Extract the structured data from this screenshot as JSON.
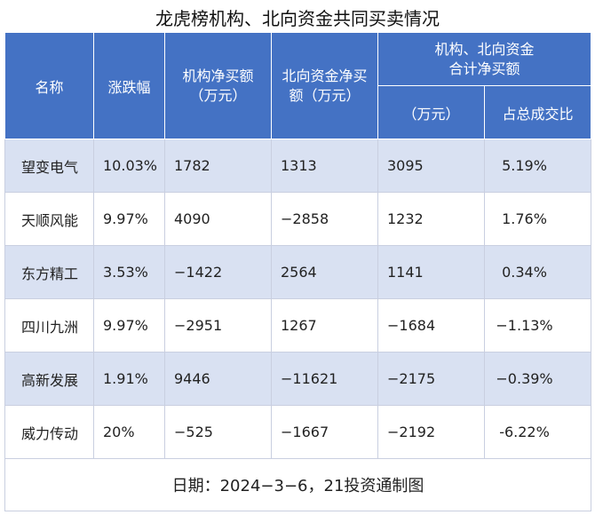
{
  "title": "龙虎榜机构、北向资金共同买卖情况",
  "headers": {
    "name": "名称",
    "change": "涨跌幅",
    "inst_net_line1": "机构净买额",
    "inst_net_line2": "（万元）",
    "north_net_line1": "北向资金净买",
    "north_net_line2": "额（万元）",
    "combined_line1": "机构、北向资金",
    "combined_line2": "合计净买额",
    "combined_unit": "（万元）",
    "share": "占总成交比"
  },
  "rows": [
    {
      "name": "望变电气",
      "change": "10.03%",
      "inst_net": "1782",
      "north_net": "1313",
      "combined": "3095",
      "share": "5.19%"
    },
    {
      "name": "天顺风能",
      "change": "9.97%",
      "inst_net": "4090",
      "north_net": "−2858",
      "combined": "1232",
      "share": "1.76%"
    },
    {
      "name": "东方精工",
      "change": "3.53%",
      "inst_net": "−1422",
      "north_net": "2564",
      "combined": "1141",
      "share": "0.34%"
    },
    {
      "name": "四川九洲",
      "change": "9.97%",
      "inst_net": "−2951",
      "north_net": "1267",
      "combined": "−1684",
      "share": "−1.13%"
    },
    {
      "name": "高新发展",
      "change": "1.91%",
      "inst_net": "9446",
      "north_net": "−11621",
      "combined": "−2175",
      "share": "−0.39%"
    },
    {
      "name": "威力传动",
      "change": "20%",
      "inst_net": "−525",
      "north_net": "−1667",
      "combined": "−2192",
      "share": "-6.22%"
    }
  ],
  "footer": "日期：2024−3−6，21投资通制图",
  "colors": {
    "header_bg": "#4472c4",
    "stripe_bg": "#d9e1f2"
  }
}
